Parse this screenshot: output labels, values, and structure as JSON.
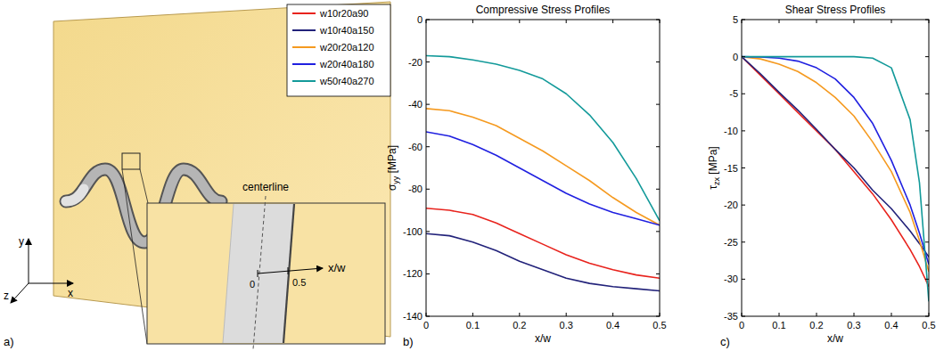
{
  "panel_labels": [
    "a)",
    "b)",
    "c)"
  ],
  "diagram": {
    "axes": {
      "x": "x",
      "y": "y",
      "z": "z"
    },
    "inset": {
      "centerline": "centerline",
      "ticks": [
        "0",
        "0.5"
      ],
      "axis_label": "x/w"
    }
  },
  "chart_data": [
    {
      "type": "line",
      "title": "Compressive Stress Profiles",
      "xlabel": "x/w",
      "ylabel": "σyy [MPa]",
      "x": [
        0,
        0.05,
        0.1,
        0.15,
        0.2,
        0.25,
        0.3,
        0.35,
        0.4,
        0.45,
        0.5
      ],
      "series": [
        {
          "name": "w10r20a90",
          "color": "#e8231d",
          "values": [
            -89,
            -90,
            -92,
            -96,
            -101,
            -106,
            -111,
            -115,
            -118,
            -120.5,
            -122
          ]
        },
        {
          "name": "w10r40a150",
          "color": "#22227a",
          "values": [
            -101,
            -102,
            -105,
            -109,
            -114,
            -118,
            -122,
            -124.5,
            -126,
            -127,
            -128
          ]
        },
        {
          "name": "w20r20a120",
          "color": "#f59a20",
          "values": [
            -42,
            -43,
            -46,
            -50,
            -56,
            -62,
            -69,
            -76,
            -84,
            -91,
            -97
          ]
        },
        {
          "name": "w20r40a180",
          "color": "#2020e0",
          "values": [
            -53,
            -55,
            -59,
            -64,
            -70,
            -76,
            -82,
            -87,
            -91,
            -94,
            -97
          ]
        },
        {
          "name": "w50r40a270",
          "color": "#139a9a",
          "values": [
            -17,
            -17.5,
            -19,
            -21,
            -24,
            -28,
            -35,
            -45,
            -58,
            -75,
            -95
          ]
        }
      ],
      "xlim": [
        0,
        0.5
      ],
      "xticks": [
        0,
        0.1,
        0.2,
        0.3,
        0.4,
        0.5
      ],
      "ylim": [
        -140,
        0
      ],
      "yticks": [
        -140,
        -120,
        -100,
        -80,
        -60,
        -40,
        -20,
        0
      ],
      "grid": false,
      "legend": "left"
    },
    {
      "type": "line",
      "title": "Shear Stress Profiles",
      "xlabel": "x/w",
      "ylabel": "τzx [MPa]",
      "x": [
        0,
        0.05,
        0.1,
        0.15,
        0.2,
        0.25,
        0.3,
        0.35,
        0.4,
        0.45,
        0.475,
        0.5
      ],
      "series": [
        {
          "name": "w10r20a90",
          "color": "#e8231d",
          "values": [
            0,
            -2.5,
            -5,
            -7.5,
            -10,
            -12.5,
            -15.5,
            -18.5,
            -22,
            -26,
            -28.3,
            -31
          ]
        },
        {
          "name": "w10r40a150",
          "color": "#22227a",
          "values": [
            0,
            -2.3,
            -4.8,
            -7.2,
            -9.8,
            -12.5,
            -15,
            -18,
            -20.5,
            -23.5,
            -25.2,
            -27
          ]
        },
        {
          "name": "w20r20a120",
          "color": "#f59a20",
          "values": [
            0,
            -0.3,
            -1,
            -2,
            -3.5,
            -5.5,
            -8,
            -11.5,
            -15.5,
            -21,
            -24.8,
            -29
          ]
        },
        {
          "name": "w20r40a180",
          "color": "#2020e0",
          "values": [
            0,
            -0.05,
            -0.2,
            -0.6,
            -1.5,
            -3,
            -5.5,
            -9,
            -14,
            -20,
            -23.8,
            -28
          ]
        },
        {
          "name": "w50r40a270",
          "color": "#139a9a",
          "values": [
            0,
            0,
            0,
            0,
            0,
            0,
            0,
            -0.2,
            -1.5,
            -8.5,
            -17,
            -33
          ]
        }
      ],
      "xlim": [
        0,
        0.5
      ],
      "xticks": [
        0,
        0.1,
        0.2,
        0.3,
        0.4,
        0.5
      ],
      "ylim": [
        -35,
        5
      ],
      "yticks": [
        -35,
        -30,
        -25,
        -20,
        -15,
        -10,
        -5,
        0,
        5
      ],
      "grid": false
    }
  ]
}
